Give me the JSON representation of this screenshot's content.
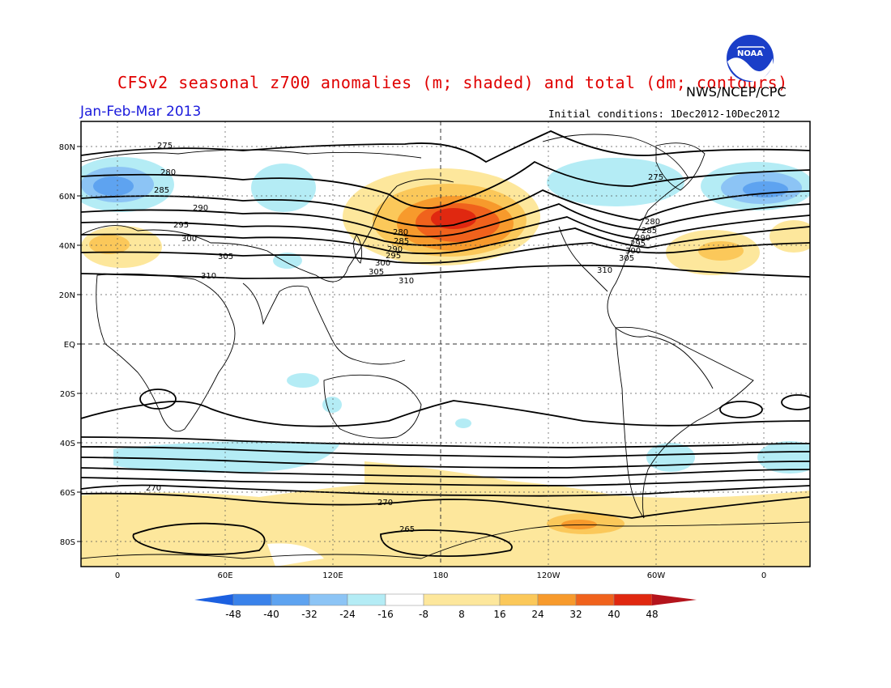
{
  "header": {
    "title": "CFSv2 seasonal z700 anomalies (m; shaded) and total (dm; contours)",
    "agency": "NWS/NCEP/CPC",
    "logo_text": "NOAA",
    "period": "Jan-Feb-Mar 2013",
    "initial_conditions": "Initial conditions: 1Dec2012-10Dec2012"
  },
  "map": {
    "lat_labels": [
      "80N",
      "60N",
      "40N",
      "20N",
      "EQ",
      "20S",
      "40S",
      "60S",
      "80S"
    ],
    "lon_labels": [
      "0",
      "60E",
      "120E",
      "180",
      "120W",
      "60W",
      "0"
    ],
    "contour_labels": [
      "275",
      "280",
      "285",
      "290",
      "295",
      "300",
      "305",
      "310",
      "270",
      "265",
      "275",
      "280",
      "285",
      "290",
      "295",
      "300",
      "305",
      "310",
      "270",
      "280",
      "285",
      "290",
      "295",
      "300",
      "305",
      "310"
    ]
  },
  "colorbar": {
    "ticks": [
      "-48",
      "-40",
      "-32",
      "-24",
      "-16",
      "-8",
      "8",
      "16",
      "24",
      "32",
      "40",
      "48"
    ],
    "colors": [
      "#1c60e0",
      "#3a82ea",
      "#5ea3f0",
      "#8cc4f5",
      "#b4ecf5",
      "#ffffff",
      "#fde79c",
      "#fbc85a",
      "#f79a2c",
      "#f0621c",
      "#e02810",
      "#b4141c"
    ]
  }
}
